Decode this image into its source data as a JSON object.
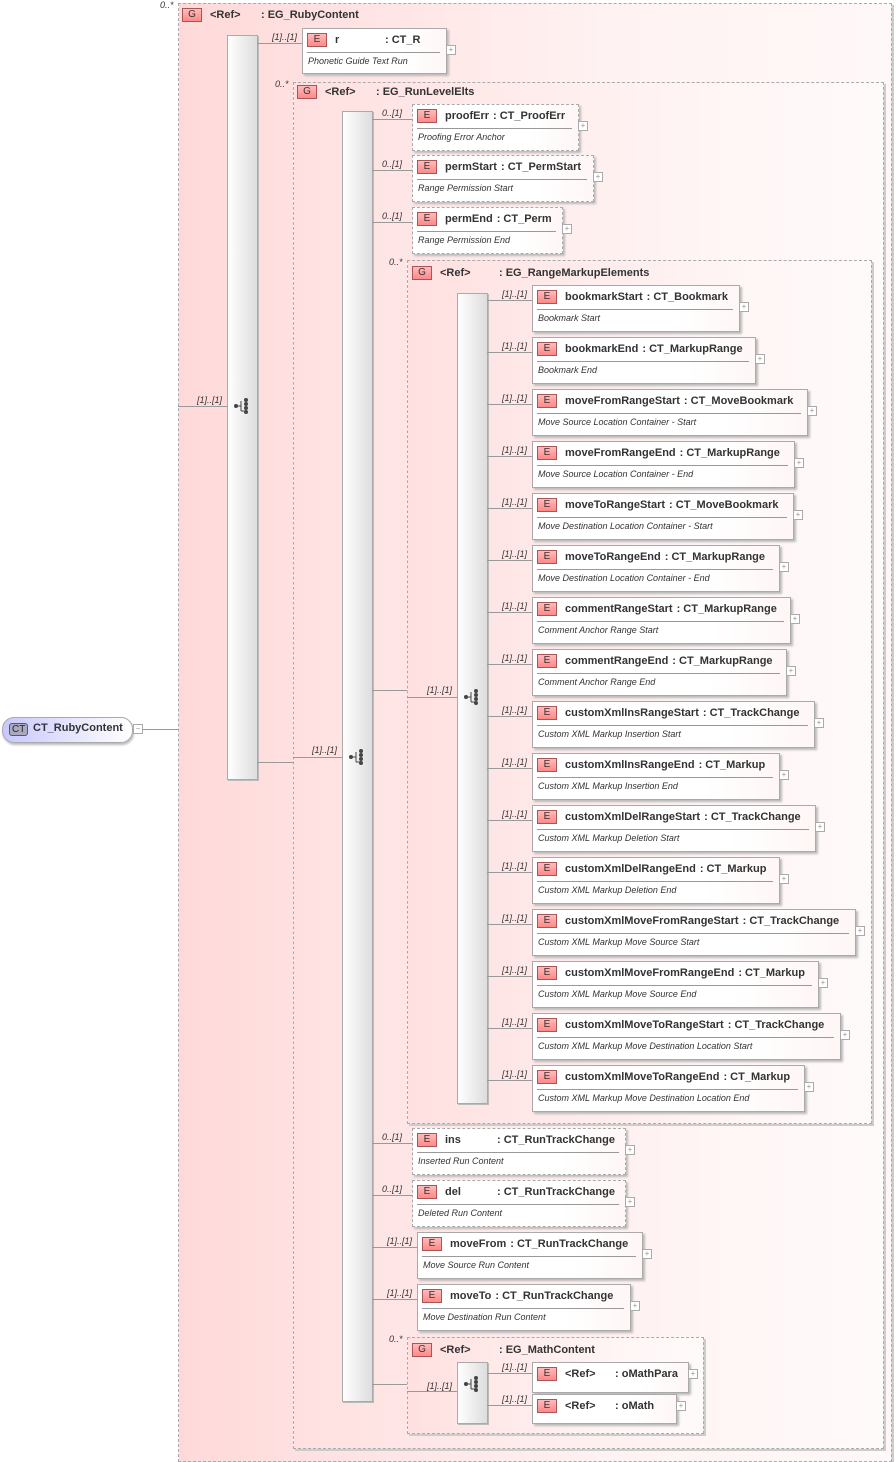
{
  "root": {
    "badge": "CT",
    "name": "CT_RubyContent",
    "collapse_icon": "minus-box-icon"
  },
  "colors": {
    "group_fill": "#ffd9d9",
    "element_badge": "#f88",
    "root_fill": "#dcdcff"
  },
  "group_badge": "G",
  "element_badge": "E",
  "groups": [
    {
      "ref": "<Ref>",
      "type": ": EG_RubyContent",
      "card": "0..*",
      "seq_card": "[1]..[1]"
    },
    {
      "ref": "<Ref>",
      "type": ": EG_RunLevelElts",
      "card": "0..*",
      "seq_card": "[1]..[1]"
    },
    {
      "ref": "<Ref>",
      "type": ": EG_RangeMarkupElements",
      "card": "0..*",
      "seq_card": "[1]..[1]"
    },
    {
      "ref": "<Ref>",
      "type": ": EG_MathContent",
      "card": "0..*",
      "seq_card": "[1]..[1]"
    }
  ],
  "elements": [
    {
      "name": "r",
      "type": ": CT_R",
      "doc": "Phonetic Guide Text Run",
      "card": "[1]..[1]"
    },
    {
      "name": "proofErr",
      "type": ": CT_ProofErr",
      "doc": "Proofing Error Anchor",
      "card": "0..[1]"
    },
    {
      "name": "permStart",
      "type": ": CT_PermStart",
      "doc": "Range Permission Start",
      "card": "0..[1]"
    },
    {
      "name": "permEnd",
      "type": ": CT_Perm",
      "doc": "Range Permission End",
      "card": "0..[1]"
    },
    {
      "name": "bookmarkStart",
      "type": ": CT_Bookmark",
      "doc": "Bookmark Start",
      "card": "[1]..[1]"
    },
    {
      "name": "bookmarkEnd",
      "type": ": CT_MarkupRange",
      "doc": "Bookmark End",
      "card": "[1]..[1]"
    },
    {
      "name": "moveFromRangeStart",
      "type": ": CT_MoveBookmark",
      "doc": "Move Source Location Container - Start",
      "card": "[1]..[1]"
    },
    {
      "name": "moveFromRangeEnd",
      "type": ": CT_MarkupRange",
      "doc": "Move Source Location Container - End",
      "card": "[1]..[1]"
    },
    {
      "name": "moveToRangeStart",
      "type": ": CT_MoveBookmark",
      "doc": "Move Destination Location Container - Start",
      "card": "[1]..[1]"
    },
    {
      "name": "moveToRangeEnd",
      "type": ": CT_MarkupRange",
      "doc": "Move Destination Location Container - End",
      "card": "[1]..[1]"
    },
    {
      "name": "commentRangeStart",
      "type": ": CT_MarkupRange",
      "doc": "Comment Anchor Range Start",
      "card": "[1]..[1]"
    },
    {
      "name": "commentRangeEnd",
      "type": ": CT_MarkupRange",
      "doc": "Comment Anchor Range End",
      "card": "[1]..[1]"
    },
    {
      "name": "customXmlInsRangeStart",
      "type": ": CT_TrackChange",
      "doc": "Custom XML Markup Insertion Start",
      "card": "[1]..[1]"
    },
    {
      "name": "customXmlInsRangeEnd",
      "type": ": CT_Markup",
      "doc": "Custom XML Markup Insertion End",
      "card": "[1]..[1]"
    },
    {
      "name": "customXmlDelRangeStart",
      "type": ": CT_TrackChange",
      "doc": "Custom XML Markup Deletion Start",
      "card": "[1]..[1]"
    },
    {
      "name": "customXmlDelRangeEnd",
      "type": ": CT_Markup",
      "doc": "Custom XML Markup Deletion End",
      "card": "[1]..[1]"
    },
    {
      "name": "customXmlMoveFromRangeStart",
      "type": ": CT_TrackChange",
      "doc": "Custom XML Markup Move Source Start",
      "card": "[1]..[1]"
    },
    {
      "name": "customXmlMoveFromRangeEnd",
      "type": ": CT_Markup",
      "doc": "Custom XML Markup Move Source End",
      "card": "[1]..[1]"
    },
    {
      "name": "customXmlMoveToRangeStart",
      "type": ": CT_TrackChange",
      "doc": "Custom XML Markup Move Destination Location Start",
      "card": "[1]..[1]"
    },
    {
      "name": "customXmlMoveToRangeEnd",
      "type": ": CT_Markup",
      "doc": "Custom XML Markup Move Destination Location End",
      "card": "[1]..[1]"
    },
    {
      "name": "ins",
      "type": ": CT_RunTrackChange",
      "doc": "Inserted Run Content",
      "card": "0..[1]"
    },
    {
      "name": "del",
      "type": ": CT_RunTrackChange",
      "doc": "Deleted Run Content",
      "card": "0..[1]"
    },
    {
      "name": "moveFrom",
      "type": ": CT_RunTrackChange",
      "doc": "Move Source Run Content",
      "card": "[1]..[1]"
    },
    {
      "name": "moveTo",
      "type": ": CT_RunTrackChange",
      "doc": "Move Destination Run Content",
      "card": "[1]..[1]"
    },
    {
      "name": "<Ref>",
      "type": ": oMathPara",
      "doc": "",
      "card": "[1]..[1]"
    },
    {
      "name": "<Ref>",
      "type": ": oMath",
      "doc": "",
      "card": "[1]..[1]"
    }
  ]
}
